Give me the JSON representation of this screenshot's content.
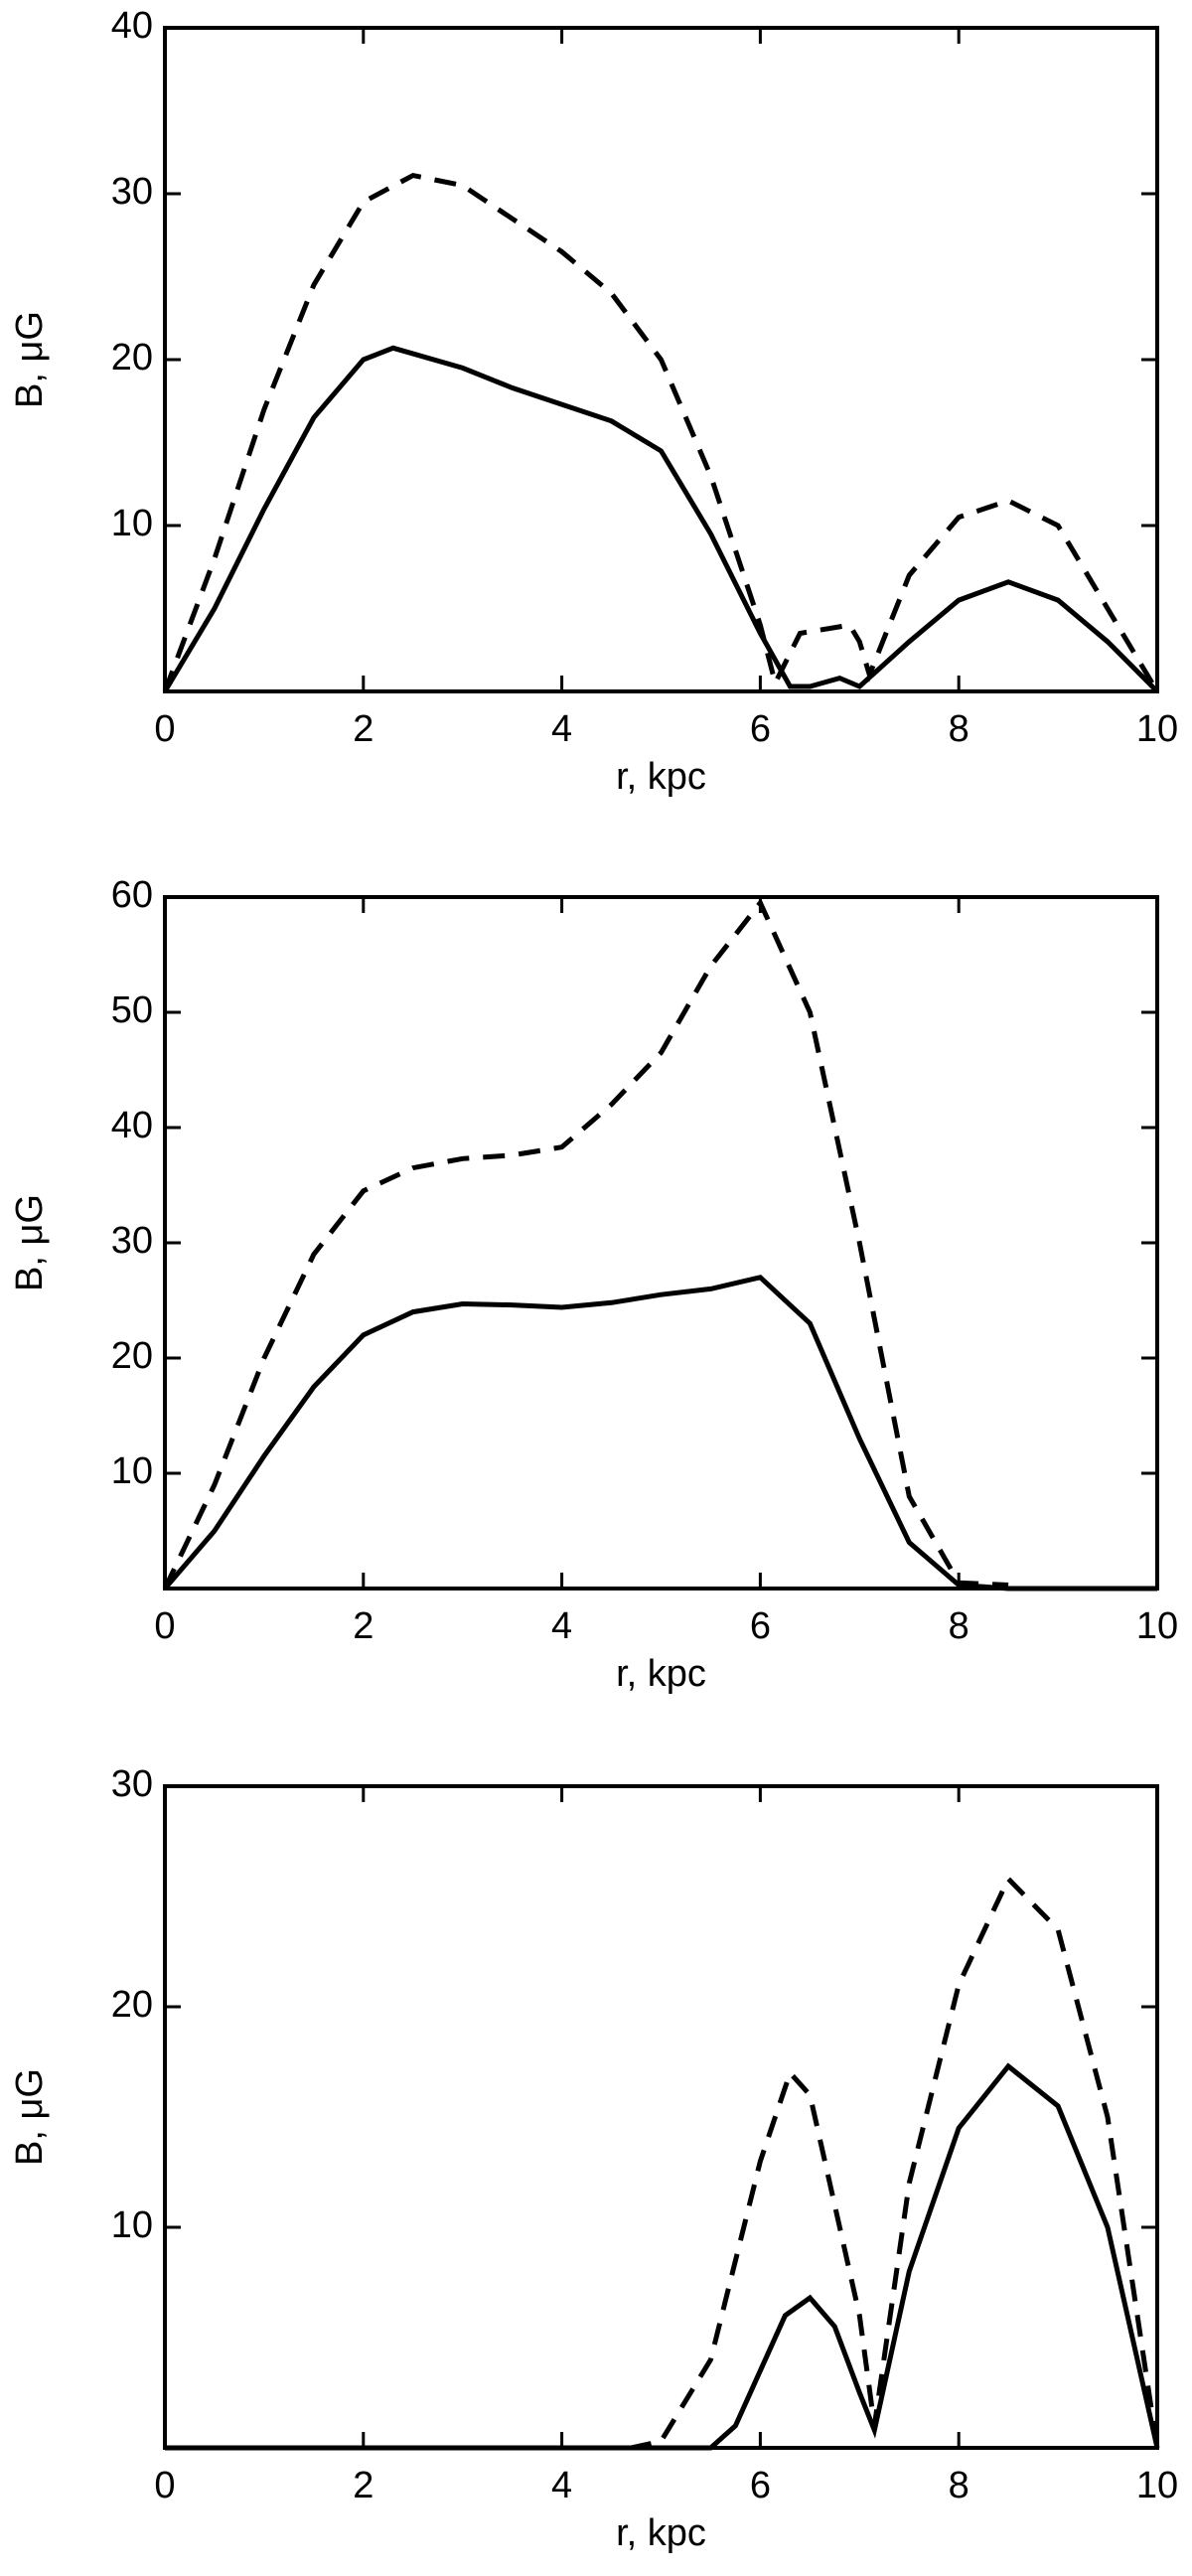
{
  "chart_data": [
    {
      "type": "line",
      "xlabel": "r, kpc",
      "ylabel": "B, μG",
      "xlim": [
        0,
        10
      ],
      "xticks": [
        0,
        2,
        4,
        6,
        8,
        10
      ],
      "ylim": [
        0,
        40
      ],
      "yticks": [
        10,
        20,
        30,
        40
      ],
      "series": [
        {
          "color": "#000000",
          "style": "solid",
          "x": [
            0,
            0.5,
            1,
            1.5,
            2,
            2.3,
            3,
            3.5,
            4,
            4.5,
            5,
            5.5,
            6,
            6.3,
            6.5,
            6.8,
            7,
            7.5,
            8,
            8.5,
            9,
            9.5,
            10
          ],
          "values": [
            0,
            5,
            11,
            16.5,
            20,
            20.7,
            19.5,
            18.3,
            17.3,
            16.3,
            14.5,
            9.5,
            3.5,
            0.3,
            0.3,
            0.8,
            0.3,
            3,
            5.5,
            6.6,
            5.5,
            3,
            0
          ]
        },
        {
          "color": "#000000",
          "style": "dashed",
          "x": [
            0,
            0.5,
            1,
            1.5,
            2,
            2.5,
            3,
            3.5,
            4,
            4.5,
            5,
            5.5,
            6,
            6.15,
            6.4,
            6.9,
            7,
            7.1,
            7.5,
            8,
            8.5,
            9,
            9.5,
            10
          ],
          "values": [
            0,
            8,
            17,
            24.5,
            29.5,
            31.1,
            30.5,
            28.5,
            26.5,
            24,
            20,
            13,
            4,
            0.5,
            3.5,
            4,
            3,
            1,
            7,
            10.5,
            11.5,
            10,
            5,
            0
          ]
        }
      ]
    },
    {
      "type": "line",
      "xlabel": "r, kpc",
      "ylabel": "B, μG",
      "xlim": [
        0,
        10
      ],
      "xticks": [
        0,
        2,
        4,
        6,
        8,
        10
      ],
      "ylim": [
        0,
        60
      ],
      "yticks": [
        10,
        20,
        30,
        40,
        50,
        60
      ],
      "series": [
        {
          "color": "#000000",
          "style": "solid",
          "x": [
            0,
            0.5,
            1,
            1.5,
            2,
            2.5,
            3,
            3.5,
            4,
            4.5,
            5,
            5.5,
            6,
            6.5,
            7,
            7.5,
            8,
            8.5,
            9,
            10
          ],
          "values": [
            0,
            5,
            11.5,
            17.5,
            22,
            24,
            24.7,
            24.6,
            24.4,
            24.8,
            25.5,
            26,
            27,
            23,
            13,
            4,
            0.3,
            0,
            0,
            0
          ]
        },
        {
          "color": "#000000",
          "style": "dashed",
          "x": [
            0,
            0.5,
            1,
            1.5,
            2,
            2.5,
            3,
            3.5,
            4,
            4.5,
            5,
            5.5,
            6,
            6.5,
            7,
            7.5,
            8,
            8.5
          ],
          "values": [
            0,
            9,
            20,
            29,
            34.5,
            36.5,
            37.3,
            37.6,
            38.3,
            42,
            46.5,
            54,
            59.5,
            50,
            30,
            8,
            0.5,
            0.3
          ]
        }
      ]
    },
    {
      "type": "line",
      "xlabel": "r, kpc",
      "ylabel": "B, μG",
      "xlim": [
        0,
        10
      ],
      "xticks": [
        0,
        2,
        4,
        6,
        8,
        10
      ],
      "ylim": [
        0,
        30
      ],
      "yticks": [
        10,
        20,
        30
      ],
      "series": [
        {
          "color": "#000000",
          "style": "solid",
          "x": [
            0,
            5.5,
            5.75,
            6,
            6.25,
            6.5,
            6.75,
            7,
            7.15,
            7.5,
            8,
            8.5,
            9,
            9.5,
            10
          ],
          "values": [
            0,
            0,
            1,
            3.5,
            6,
            6.8,
            5.5,
            2.5,
            0.8,
            8,
            14.5,
            17.3,
            15.5,
            10,
            0
          ]
        },
        {
          "color": "#000000",
          "style": "dashed",
          "x": [
            0,
            4.7,
            5,
            5.5,
            6,
            6.3,
            6.5,
            7,
            7.15,
            7.5,
            8,
            8.5,
            9,
            9.5,
            10
          ],
          "values": [
            0,
            0,
            0.3,
            4,
            13,
            17,
            16,
            6,
            1,
            12,
            21,
            25.8,
            23.5,
            15,
            0
          ]
        }
      ]
    }
  ]
}
